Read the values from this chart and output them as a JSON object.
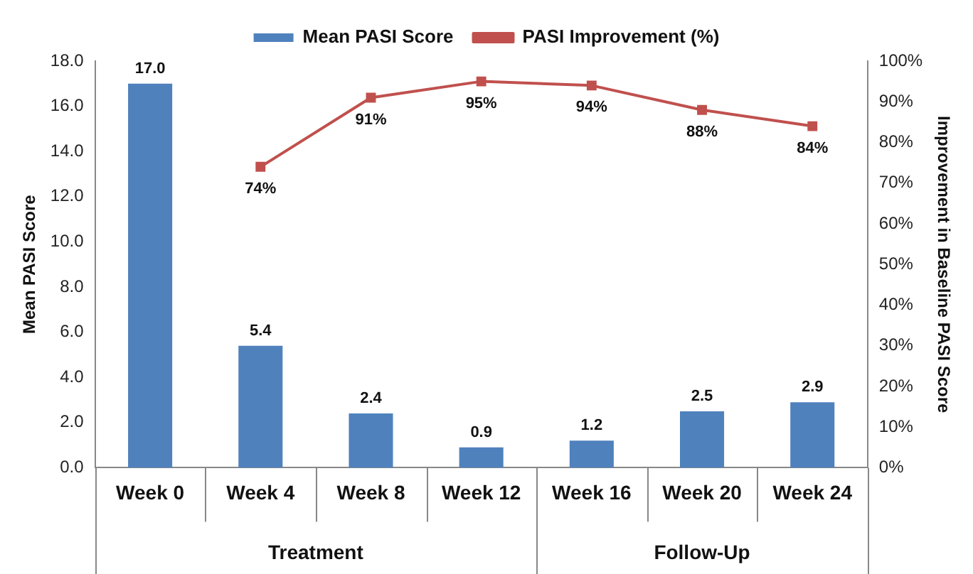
{
  "chart_data": {
    "type": "bar",
    "categories": [
      "Week 0",
      "Week 4",
      "Week 8",
      "Week 12",
      "Week 16",
      "Week 20",
      "Week 24"
    ],
    "series": [
      {
        "name": "Mean PASI Score",
        "color": "#4f81bd",
        "values": [
          17.0,
          5.4,
          2.4,
          0.9,
          1.2,
          2.5,
          2.9
        ],
        "value_labels": [
          "17.0",
          "5.4",
          "2.4",
          "0.9",
          "1.2",
          "2.5",
          "2.9"
        ]
      },
      {
        "name": "PASI Improvement (%)",
        "type": "line",
        "axis": "y2",
        "color": "#c0504d",
        "marker": "square",
        "values": [
          null,
          74,
          91,
          95,
          94,
          88,
          84
        ],
        "value_labels": [
          null,
          "74%",
          "91%",
          "95%",
          "94%",
          "88%",
          "84%"
        ]
      }
    ],
    "ylabel": "Mean PASI Score",
    "y2label": "Improvement in Baseline PASI Score",
    "ylim": [
      0,
      18
    ],
    "yticks": [
      {
        "value": 0,
        "label": "0.0"
      },
      {
        "value": 2,
        "label": "2.0"
      },
      {
        "value": 4,
        "label": "4.0"
      },
      {
        "value": 6,
        "label": "6.0"
      },
      {
        "value": 8,
        "label": "8.0"
      },
      {
        "value": 10,
        "label": "10.0"
      },
      {
        "value": 12,
        "label": "12.0"
      },
      {
        "value": 14,
        "label": "14.0"
      },
      {
        "value": 16,
        "label": "16.0"
      },
      {
        "value": 18,
        "label": "18.0"
      }
    ],
    "y2lim": [
      0,
      100
    ],
    "y2ticks": [
      {
        "value": 0,
        "label": "0%"
      },
      {
        "value": 10,
        "label": "10%"
      },
      {
        "value": 20,
        "label": "20%"
      },
      {
        "value": 30,
        "label": "30%"
      },
      {
        "value": 40,
        "label": "40%"
      },
      {
        "value": 50,
        "label": "50%"
      },
      {
        "value": 60,
        "label": "60%"
      },
      {
        "value": 70,
        "label": "70%"
      },
      {
        "value": 80,
        "label": "80%"
      },
      {
        "value": 90,
        "label": "90%"
      },
      {
        "value": 100,
        "label": "100%"
      }
    ],
    "annotations": [
      "Treatment",
      "Follow-Up"
    ],
    "legend": "top",
    "grid": false
  }
}
